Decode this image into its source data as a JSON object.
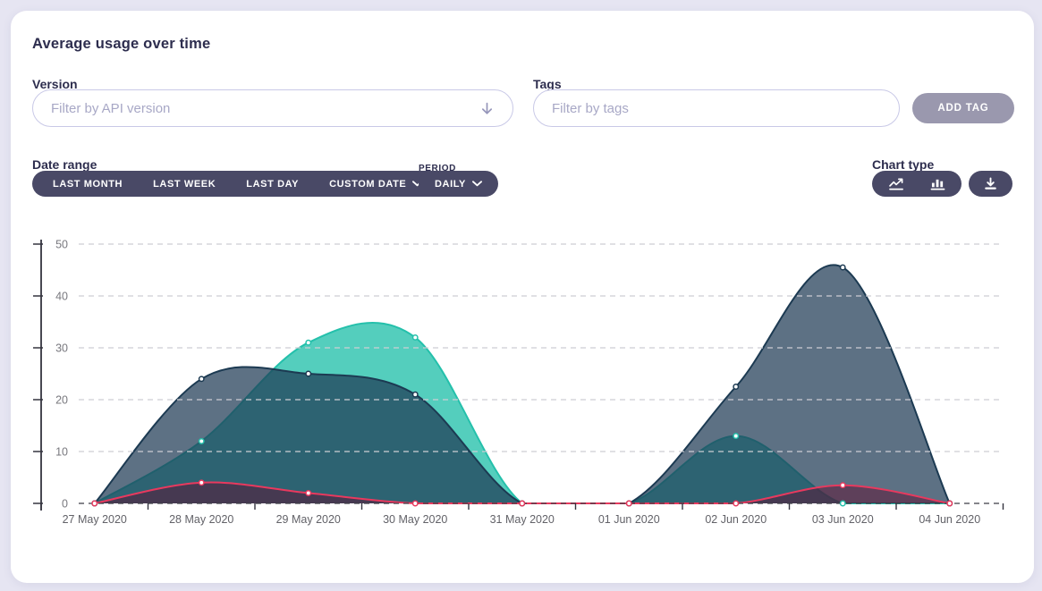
{
  "card": {
    "title": "Average usage over time"
  },
  "filters": {
    "version": {
      "label": "Version",
      "placeholder": "Filter by API version"
    },
    "tags": {
      "label": "Tags",
      "placeholder": "Filter by tags",
      "add_button": "ADD TAG"
    },
    "date_range": {
      "label": "Date range",
      "options": [
        "LAST MONTH",
        "LAST WEEK",
        "LAST DAY",
        "CUSTOM DATE"
      ]
    },
    "period": {
      "label": "PERIOD",
      "value": "DAILY"
    },
    "chart_type": {
      "label": "Chart type",
      "icons": [
        "line-chart",
        "bar-chart"
      ],
      "download_icon": "download"
    }
  },
  "colors": {
    "page_background": "#e6e5f2",
    "dark_pill": "#494966",
    "add_tag_button": "#9a98ae",
    "input_border": "#c9c9e7",
    "navy_series": "#1c3a52",
    "teal_series": "#24c0ab",
    "red_series": "#e8395e"
  },
  "chart_data": {
    "type": "area",
    "title": "Average usage over time",
    "x": [
      "27 May 2020",
      "28 May 2020",
      "29 May 2020",
      "30 May 2020",
      "31 May 2020",
      "01 Jun 2020",
      "02 Jun 2020",
      "03 Jun 2020",
      "04 Jun 2020"
    ],
    "series": [
      {
        "name": "teal-series",
        "color": "#24c0ab",
        "fill": "rgba(36,192,171,0.78)",
        "values": [
          0,
          12,
          31,
          32,
          0,
          0,
          13,
          0,
          0
        ]
      },
      {
        "name": "navy-series",
        "color": "#1c3a52",
        "fill": "rgba(31,58,84,0.72)",
        "values": [
          0,
          24,
          25,
          21,
          0,
          0,
          22.5,
          45.5,
          0
        ]
      },
      {
        "name": "red-series",
        "color": "#e8395e",
        "fill": "rgba(96,16,48,0.5)",
        "values": [
          0,
          4,
          2,
          0,
          0,
          0,
          0,
          3.5,
          0
        ]
      }
    ],
    "ylim": [
      0,
      50
    ],
    "yticks": [
      0,
      10,
      20,
      30,
      40,
      50
    ],
    "grid": "dashed-horizontal",
    "legend": "none",
    "point_markers": true,
    "curve": "smooth"
  }
}
